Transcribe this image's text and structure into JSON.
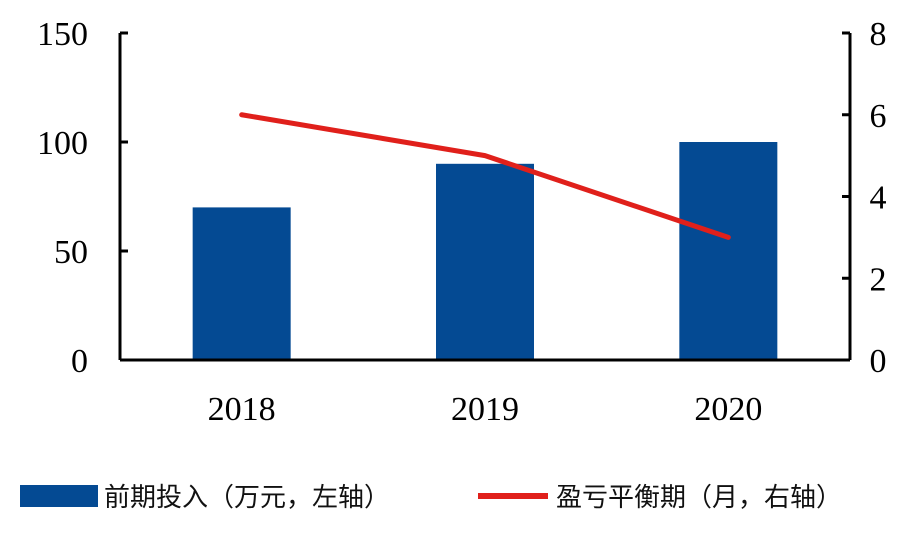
{
  "chart_data": {
    "type": "bar+line",
    "categories": [
      "2018",
      "2019",
      "2020"
    ],
    "series": [
      {
        "name": "前期投入（万元，左轴）",
        "type": "bar",
        "axis": "left",
        "values": [
          70,
          90,
          100
        ],
        "color": "#044a93"
      },
      {
        "name": "盈亏平衡期（月，右轴）",
        "type": "line",
        "axis": "right",
        "values": [
          6,
          5,
          3
        ],
        "color": "#e0201b"
      }
    ],
    "left_axis": {
      "ylim": [
        0,
        150
      ],
      "ticks": [
        "0",
        "50",
        "100",
        "150"
      ]
    },
    "right_axis": {
      "ylim": [
        0,
        8
      ],
      "ticks": [
        "0",
        "2",
        "4",
        "6",
        "8"
      ]
    },
    "grid": false,
    "legend_position": "bottom"
  }
}
